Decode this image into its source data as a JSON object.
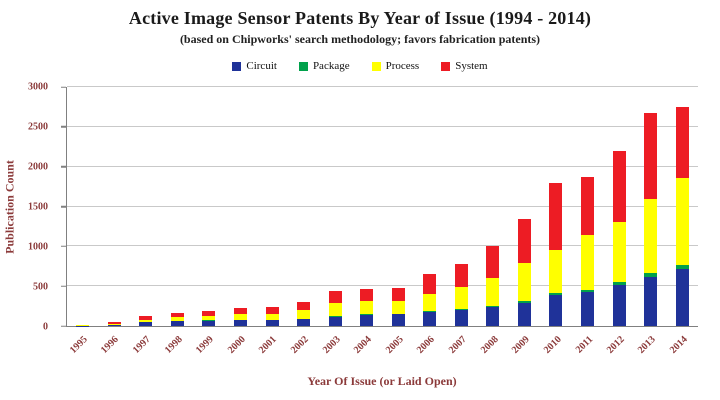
{
  "header": {
    "title": "Active Image Sensor Patents By Year of Issue (1994 - 2014)",
    "subtitle": "(based on Chipworks' search methodology; favors fabrication patents)"
  },
  "chart_data": {
    "type": "bar",
    "stacked": true,
    "title": "Active Image Sensor Patents By Year of Issue (1994 - 2014)",
    "subtitle": "(based on Chipworks' search methodology; favors fabrication patents)",
    "xlabel": "Year Of Issue (or Laid Open)",
    "ylabel": "Publication Count",
    "ylim": [
      0,
      3000
    ],
    "yticks": [
      0,
      500,
      1000,
      1500,
      2000,
      2500,
      3000
    ],
    "grid": true,
    "legend_position": "top",
    "categories": [
      "1995",
      "1996",
      "1997",
      "1998",
      "1999",
      "2000",
      "2001",
      "2002",
      "2003",
      "2004",
      "2005",
      "2006",
      "2007",
      "2008",
      "2009",
      "2010",
      "2011",
      "2012",
      "2013",
      "2014"
    ],
    "series": [
      {
        "name": "Circuit",
        "color": "#1F3299",
        "values": [
          5,
          15,
          45,
          60,
          65,
          70,
          70,
          85,
          115,
          140,
          145,
          180,
          200,
          235,
          295,
          390,
          430,
          520,
          620,
          720
        ]
      },
      {
        "name": "Package",
        "color": "#00A14B",
        "values": [
          0,
          0,
          0,
          5,
          5,
          5,
          5,
          5,
          10,
          10,
          10,
          10,
          15,
          15,
          20,
          20,
          25,
          30,
          40,
          50
        ]
      },
      {
        "name": "Process",
        "color": "#FFFF00",
        "values": [
          5,
          15,
          35,
          50,
          60,
          80,
          80,
          115,
          165,
          160,
          165,
          215,
          280,
          350,
          470,
          550,
          690,
          750,
          940,
          1090
        ]
      },
      {
        "name": "System",
        "color": "#ED1C24",
        "values": [
          5,
          25,
          40,
          50,
          55,
          70,
          80,
          100,
          145,
          150,
          155,
          250,
          280,
          400,
          555,
          830,
          720,
          900,
          1070,
          890
        ]
      }
    ],
    "totals": [
      15,
      55,
      120,
      165,
      185,
      225,
      235,
      305,
      435,
      460,
      475,
      655,
      775,
      1000,
      1340,
      1790,
      1865,
      2200,
      2670,
      2750
    ]
  }
}
